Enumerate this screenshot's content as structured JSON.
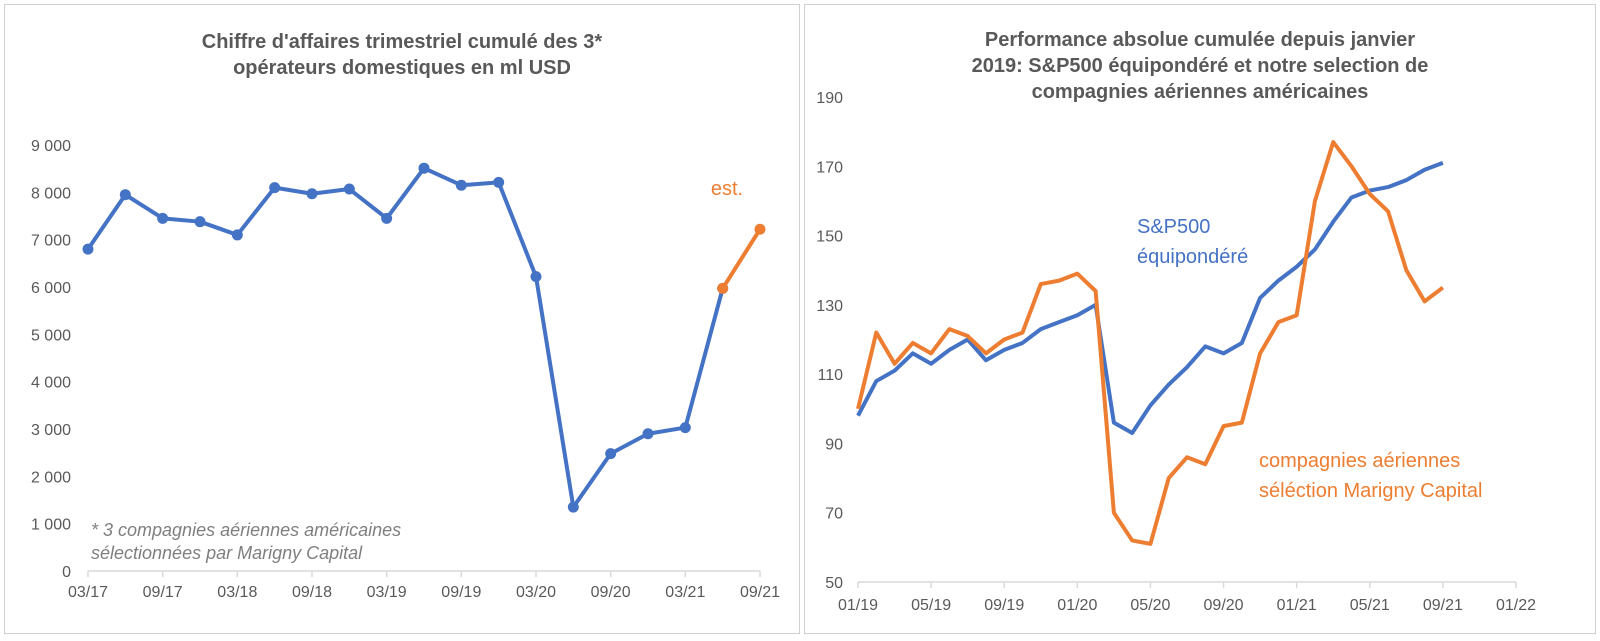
{
  "colors": {
    "blue": "#4472c4",
    "orange": "#ed7d31",
    "text": "#595959",
    "axis": "#d9d9d9"
  },
  "chart_data": [
    {
      "type": "line",
      "title_lines": [
        "Chiffre d'affaires trimestriel cumulé des 3*",
        "opérateurs domestiques en ml USD"
      ],
      "ylim": [
        0,
        9000
      ],
      "yticks": [
        0,
        1000,
        2000,
        3000,
        4000,
        5000,
        6000,
        7000,
        8000,
        9000
      ],
      "ytick_labels": [
        "0",
        "1 000",
        "2 000",
        "3 000",
        "4 000",
        "5 000",
        "6 000",
        "7 000",
        "8 000",
        "9 000"
      ],
      "xtick_labels": [
        "03/17",
        "09/17",
        "03/18",
        "09/18",
        "03/19",
        "09/19",
        "03/20",
        "09/20",
        "03/21",
        "09/21"
      ],
      "categories": [
        "03/17",
        "06/17",
        "09/17",
        "12/17",
        "03/18",
        "06/18",
        "09/18",
        "12/18",
        "03/19",
        "06/19",
        "09/19",
        "12/19",
        "03/20",
        "06/20",
        "09/20",
        "12/20",
        "03/21",
        "06/21",
        "09/21"
      ],
      "series": [
        {
          "color": "#4472c4",
          "values": [
            6800,
            7950,
            7450,
            7380,
            7100,
            8100,
            7970,
            8070,
            7450,
            8510,
            8150,
            8210,
            6220,
            1350,
            2480,
            2900,
            3030,
            5970,
            null
          ]
        },
        {
          "color": "#ed7d31",
          "values": [
            null,
            null,
            null,
            null,
            null,
            null,
            null,
            null,
            null,
            null,
            null,
            null,
            null,
            null,
            null,
            null,
            null,
            5970,
            7220
          ]
        }
      ],
      "annotations": {
        "est": "est.",
        "note_line1": "* 3 compagnies aériennes américaines",
        "note_line2": "sélectionnées par Marigny Capital"
      },
      "grid": false
    },
    {
      "type": "line",
      "title_lines": [
        "Performance absolue cumulée depuis janvier",
        "2019: S&P500 équipondéré et notre selection de",
        "compagnies aériennes américaines"
      ],
      "ylim": [
        50,
        190
      ],
      "yticks": [
        50,
        70,
        90,
        110,
        130,
        150,
        170,
        190
      ],
      "xlim": [
        "01/19",
        "01/22"
      ],
      "xtick_labels": [
        "01/19",
        "05/19",
        "09/19",
        "01/20",
        "05/20",
        "09/20",
        "01/21",
        "05/21",
        "09/21",
        "01/22"
      ],
      "series": [
        {
          "label_lines": [
            "S&P500",
            "équipondéré"
          ],
          "color": "#4472c4",
          "points": [
            [
              "01/19",
              98
            ],
            [
              "02/19",
              108
            ],
            [
              "03/19",
              111
            ],
            [
              "04/19",
              116
            ],
            [
              "05/19",
              113
            ],
            [
              "06/19",
              117
            ],
            [
              "07/19",
              120
            ],
            [
              "08/19",
              114
            ],
            [
              "09/19",
              117
            ],
            [
              "10/19",
              119
            ],
            [
              "11/19",
              123
            ],
            [
              "12/19",
              125
            ],
            [
              "01/20",
              127
            ],
            [
              "02/20",
              130
            ],
            [
              "03/20",
              96
            ],
            [
              "04/20",
              93
            ],
            [
              "05/20",
              101
            ],
            [
              "06/20",
              107
            ],
            [
              "07/20",
              112
            ],
            [
              "08/20",
              118
            ],
            [
              "09/20",
              116
            ],
            [
              "10/20",
              119
            ],
            [
              "11/20",
              132
            ],
            [
              "12/20",
              137
            ],
            [
              "01/21",
              141
            ],
            [
              "02/21",
              146
            ],
            [
              "03/21",
              154
            ],
            [
              "04/21",
              161
            ],
            [
              "05/21",
              163
            ],
            [
              "06/21",
              164
            ],
            [
              "07/21",
              166
            ],
            [
              "08/21",
              169
            ],
            [
              "09/21",
              171
            ]
          ]
        },
        {
          "label_lines": [
            "compagnies aériennes",
            "séléction Marigny Capital"
          ],
          "color": "#ed7d31",
          "points": [
            [
              "01/19",
              100
            ],
            [
              "02/19",
              122
            ],
            [
              "03/19",
              113
            ],
            [
              "04/19",
              119
            ],
            [
              "05/19",
              116
            ],
            [
              "06/19",
              123
            ],
            [
              "07/19",
              121
            ],
            [
              "08/19",
              116
            ],
            [
              "09/19",
              120
            ],
            [
              "10/19",
              122
            ],
            [
              "11/19",
              136
            ],
            [
              "12/19",
              137
            ],
            [
              "01/20",
              139
            ],
            [
              "02/20",
              134
            ],
            [
              "03/20",
              70
            ],
            [
              "04/20",
              62
            ],
            [
              "05/20",
              61
            ],
            [
              "06/20",
              80
            ],
            [
              "07/20",
              86
            ],
            [
              "08/20",
              84
            ],
            [
              "09/20",
              95
            ],
            [
              "10/20",
              96
            ],
            [
              "11/20",
              116
            ],
            [
              "12/20",
              125
            ],
            [
              "01/21",
              127
            ],
            [
              "02/21",
              160
            ],
            [
              "03/21",
              177
            ],
            [
              "04/21",
              170
            ],
            [
              "05/21",
              162
            ],
            [
              "06/21",
              157
            ],
            [
              "07/21",
              140
            ],
            [
              "08/21",
              131
            ],
            [
              "09/21",
              135
            ]
          ]
        }
      ],
      "grid": false
    }
  ]
}
